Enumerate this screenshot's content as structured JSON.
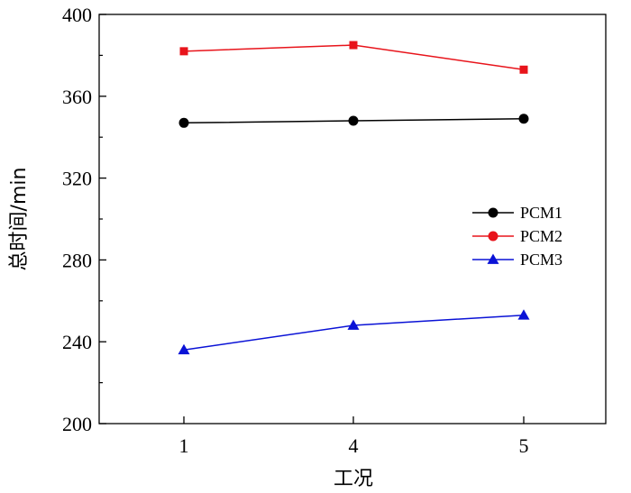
{
  "chart_data": {
    "type": "line",
    "title": "",
    "xlabel": "工况",
    "ylabel": "总时间/min",
    "categories": [
      "1",
      "4",
      "5"
    ],
    "ylim": [
      200,
      400
    ],
    "yticks": [
      200,
      240,
      280,
      320,
      360,
      400
    ],
    "grid": false,
    "legend_position": "right",
    "series": [
      {
        "name": "PCM1",
        "values": [
          347,
          348,
          349
        ],
        "color": "#000000",
        "legend_marker": "circle",
        "marker": "circle"
      },
      {
        "name": "PCM2",
        "values": [
          382,
          385,
          373
        ],
        "color": "#e8141b",
        "legend_marker": "circle",
        "marker": "square"
      },
      {
        "name": "PCM3",
        "values": [
          236,
          248,
          253
        ],
        "color": "#0a12d6",
        "legend_marker": "triangle",
        "marker": "triangle"
      }
    ]
  }
}
